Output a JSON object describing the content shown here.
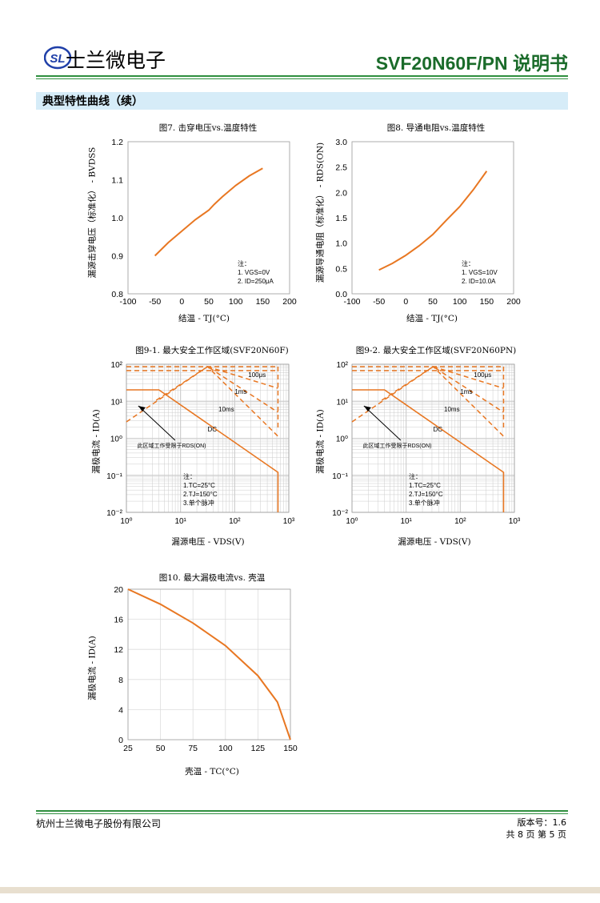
{
  "header": {
    "logo_mark": "SL",
    "company_short": "士兰微电子",
    "doc_title": "SVF20N60F/PN 说明书"
  },
  "section_title": "典型特性曲线（续）",
  "colors": {
    "curve": "#e87722",
    "green": "#2f8f3f",
    "grid": "#b8b8b8",
    "band": "#d6ecf8"
  },
  "fig7": {
    "caption": "图7. 击穿电压vs.温度特性",
    "ylabel": "漏源击穿电压（标准化） - BVDSS",
    "xlabel": "结温 - TJ(°C)",
    "xticks": [
      "-100",
      "-50",
      "0",
      "50",
      "100",
      "150",
      "200"
    ],
    "yticks": [
      "0.8",
      "0.9",
      "1.0",
      "1.1",
      "1.2"
    ],
    "note": [
      "注：",
      "1. VGS=0V",
      "2. ID=250μA"
    ],
    "chart_data": {
      "type": "line",
      "x": [
        -50,
        -25,
        0,
        25,
        40,
        50,
        60,
        75,
        100,
        125,
        150
      ],
      "y": [
        0.9,
        0.935,
        0.965,
        0.995,
        1.01,
        1.02,
        1.035,
        1.055,
        1.085,
        1.11,
        1.13
      ],
      "xlim": [
        -100,
        200
      ],
      "ylim": [
        0.8,
        1.2
      ]
    }
  },
  "fig8": {
    "caption": "图8. 导通电阻vs.温度特性",
    "ylabel": "漏源导通电阻（标准化） - RDS(ON)",
    "xlabel": "结温 - TJ(°C)",
    "xticks": [
      "-100",
      "-50",
      "0",
      "50",
      "100",
      "150",
      "200"
    ],
    "yticks": [
      "0.0",
      "0.5",
      "1.0",
      "1.5",
      "2.0",
      "2.5",
      "3.0"
    ],
    "note": [
      "注：",
      "1. VGS=10V",
      "2. ID=10.0A"
    ],
    "chart_data": {
      "type": "line",
      "x": [
        -50,
        -25,
        0,
        25,
        50,
        75,
        100,
        125,
        150
      ],
      "y": [
        0.47,
        0.6,
        0.76,
        0.95,
        1.17,
        1.45,
        1.72,
        2.05,
        2.42
      ],
      "xlim": [
        -100,
        200
      ],
      "ylim": [
        0,
        3
      ]
    }
  },
  "fig9_1": {
    "caption": "图9-1. 最大安全工作区域(SVF20N60F)",
    "ylabel": "漏极电流 - ID(A)",
    "xlabel": "漏源电压 - VDS(V)",
    "labels": [
      "100μs",
      "1ms",
      "10ms",
      "DC"
    ],
    "arrow_text": "此区域工作受限于RDS(ON)",
    "note": [
      "注：",
      "1.TC=25°C",
      "2.TJ=150°C",
      "3.单个脉冲"
    ],
    "xticks": [
      "10⁰",
      "10¹",
      "10²",
      "10³"
    ],
    "yticks": [
      "10²",
      "10¹",
      "10⁰",
      "10⁻¹",
      "10⁻²"
    ]
  },
  "fig9_2": {
    "caption": "图9-2. 最大安全工作区域(SVF20N60PN)",
    "ylabel": "漏极电流 - ID(A)",
    "xlabel": "漏源电压 - VDS(V)",
    "labels": [
      "100μs",
      "1ms",
      "10ms",
      "DC"
    ],
    "arrow_text": "此区域工作受限于RDS(ON)",
    "note": [
      "注：",
      "1.TC=25°C",
      "2.TJ=150°C",
      "3.单个脉冲"
    ],
    "xticks": [
      "10⁰",
      "10¹",
      "10²",
      "10³"
    ],
    "yticks": [
      "10²",
      "10¹",
      "10⁰",
      "10⁻¹",
      "10⁻²"
    ]
  },
  "fig10": {
    "caption": "图10. 最大漏极电流vs. 壳温",
    "ylabel": "漏极电流 - ID(A)",
    "xlabel": "壳温 - TC(°C)",
    "xticks": [
      "25",
      "50",
      "75",
      "100",
      "125",
      "150"
    ],
    "yticks": [
      "0",
      "4",
      "8",
      "12",
      "16",
      "20"
    ],
    "chart_data": {
      "type": "line",
      "x": [
        25,
        50,
        75,
        100,
        125,
        140,
        150
      ],
      "y": [
        20,
        18,
        15.5,
        12.5,
        8.5,
        5,
        0
      ],
      "xlim": [
        25,
        150
      ],
      "ylim": [
        0,
        20
      ]
    }
  },
  "footer": {
    "company": "杭州士兰微电子股份有限公司",
    "version": "版本号：1.6",
    "pages": "共 8 页     第 5 页"
  }
}
